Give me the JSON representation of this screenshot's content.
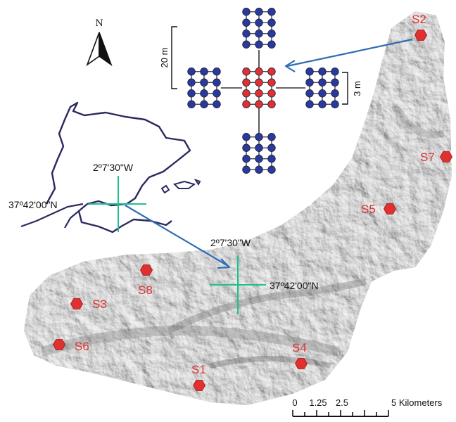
{
  "map": {
    "north_label": "N",
    "inset_coords": {
      "longitude": "2º7'30\"W",
      "latitude": "37º42'00\"N"
    },
    "main_coords": {
      "longitude": "2º7'30\"W",
      "latitude": "37º42'00\"N"
    },
    "plot_dimensions": {
      "span": "20 m",
      "cell": "3 m"
    },
    "scale_bar": {
      "ticks": [
        "0",
        "1.25",
        "2.5"
      ],
      "end_label": "5 Kilometers"
    },
    "sites": [
      {
        "id": "s1",
        "label": "S1"
      },
      {
        "id": "s2",
        "label": "S2"
      },
      {
        "id": "s3",
        "label": "S3"
      },
      {
        "id": "s4",
        "label": "S4"
      },
      {
        "id": "s5",
        "label": "S5"
      },
      {
        "id": "s6",
        "label": "S6"
      },
      {
        "id": "s7",
        "label": "S7"
      },
      {
        "id": "s8",
        "label": "S8"
      }
    ],
    "colors": {
      "site_marker": "#e03030",
      "arrow": "#2f6db5",
      "crosshair": "#20c090",
      "node_blue": "#2a3a9a",
      "node_red": "#e03030",
      "coastline": "#2a2a60"
    }
  }
}
